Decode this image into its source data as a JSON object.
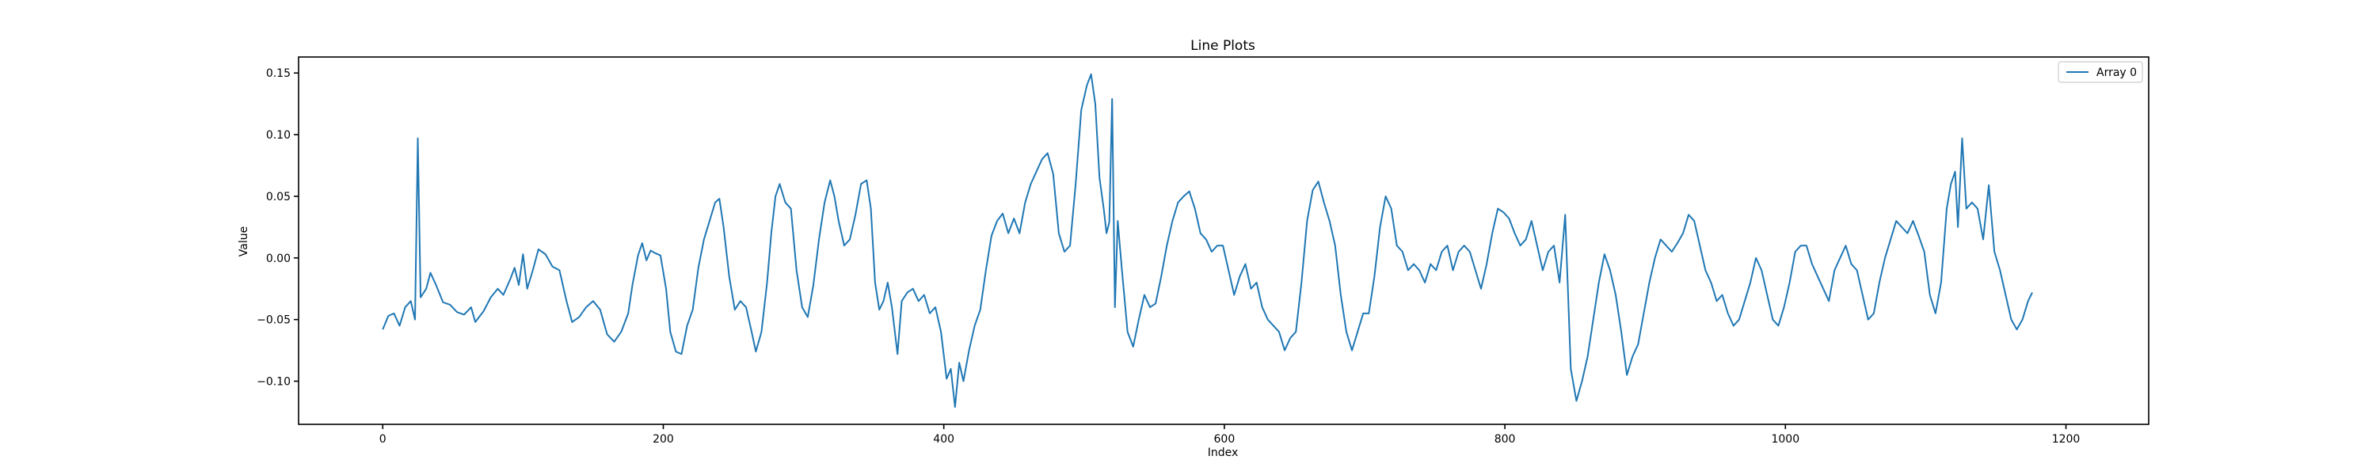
{
  "chart_data": {
    "type": "line",
    "title": "Line Plots",
    "xlabel": "Index",
    "ylabel": "Value",
    "xlim": [
      -60,
      1259
    ],
    "ylim": [
      -0.135,
      0.163
    ],
    "xticks": [
      0,
      200,
      400,
      600,
      800,
      1000,
      1200
    ],
    "xtick_labels": [
      "0",
      "200",
      "400",
      "600",
      "800",
      "1000",
      "1200"
    ],
    "yticks": [
      -0.1,
      -0.05,
      0.0,
      0.05,
      0.1,
      0.15
    ],
    "ytick_labels": [
      "−0.10",
      "−0.05",
      "0.00",
      "0.05",
      "0.10",
      "0.15"
    ],
    "grid": false,
    "legend_position": "top-right",
    "colors": {
      "series": "#1f77b4",
      "axes": "#000000",
      "background": "#ffffff"
    },
    "series": [
      {
        "name": "Array 0",
        "anchors": [
          [
            0,
            -0.058
          ],
          [
            4,
            -0.047
          ],
          [
            8,
            -0.045
          ],
          [
            12,
            -0.055
          ],
          [
            16,
            -0.04
          ],
          [
            20,
            -0.035
          ],
          [
            23,
            -0.05
          ],
          [
            25,
            0.097
          ],
          [
            27,
            -0.032
          ],
          [
            31,
            -0.025
          ],
          [
            34,
            -0.012
          ],
          [
            38,
            -0.022
          ],
          [
            43,
            -0.036
          ],
          [
            48,
            -0.038
          ],
          [
            53,
            -0.044
          ],
          [
            58,
            -0.046
          ],
          [
            63,
            -0.04
          ],
          [
            66,
            -0.052
          ],
          [
            72,
            -0.043
          ],
          [
            77,
            -0.032
          ],
          [
            82,
            -0.025
          ],
          [
            86,
            -0.03
          ],
          [
            91,
            -0.017
          ],
          [
            94,
            -0.008
          ],
          [
            97,
            -0.022
          ],
          [
            100,
            0.003
          ],
          [
            103,
            -0.025
          ],
          [
            107,
            -0.01
          ],
          [
            111,
            0.007
          ],
          [
            116,
            0.003
          ],
          [
            121,
            -0.007
          ],
          [
            126,
            -0.01
          ],
          [
            131,
            -0.035
          ],
          [
            135,
            -0.052
          ],
          [
            140,
            -0.048
          ],
          [
            145,
            -0.04
          ],
          [
            150,
            -0.035
          ],
          [
            155,
            -0.042
          ],
          [
            160,
            -0.062
          ],
          [
            165,
            -0.068
          ],
          [
            170,
            -0.06
          ],
          [
            175,
            -0.045
          ],
          [
            178,
            -0.022
          ],
          [
            182,
            0.002
          ],
          [
            185,
            0.012
          ],
          [
            188,
            -0.002
          ],
          [
            191,
            0.006
          ],
          [
            194,
            0.004
          ],
          [
            198,
            0.002
          ],
          [
            202,
            -0.025
          ],
          [
            205,
            -0.06
          ],
          [
            209,
            -0.076
          ],
          [
            213,
            -0.078
          ],
          [
            217,
            -0.055
          ],
          [
            221,
            -0.042
          ],
          [
            225,
            -0.008
          ],
          [
            229,
            0.015
          ],
          [
            233,
            0.03
          ],
          [
            237,
            0.045
          ],
          [
            240,
            0.048
          ],
          [
            243,
            0.025
          ],
          [
            247,
            -0.015
          ],
          [
            251,
            -0.042
          ],
          [
            255,
            -0.035
          ],
          [
            259,
            -0.04
          ],
          [
            263,
            -0.06
          ],
          [
            266,
            -0.076
          ],
          [
            270,
            -0.06
          ],
          [
            274,
            -0.02
          ],
          [
            277,
            0.02
          ],
          [
            280,
            0.05
          ],
          [
            283,
            0.06
          ],
          [
            287,
            0.045
          ],
          [
            291,
            0.04
          ],
          [
            295,
            -0.01
          ],
          [
            299,
            -0.04
          ],
          [
            303,
            -0.048
          ],
          [
            307,
            -0.022
          ],
          [
            311,
            0.015
          ],
          [
            315,
            0.045
          ],
          [
            319,
            0.063
          ],
          [
            322,
            0.05
          ],
          [
            325,
            0.03
          ],
          [
            329,
            0.01
          ],
          [
            333,
            0.015
          ],
          [
            337,
            0.035
          ],
          [
            341,
            0.06
          ],
          [
            345,
            0.063
          ],
          [
            348,
            0.04
          ],
          [
            351,
            -0.02
          ],
          [
            354,
            -0.042
          ],
          [
            357,
            -0.035
          ],
          [
            360,
            -0.02
          ],
          [
            363,
            -0.04
          ],
          [
            367,
            -0.078
          ],
          [
            370,
            -0.035
          ],
          [
            374,
            -0.028
          ],
          [
            378,
            -0.025
          ],
          [
            382,
            -0.035
          ],
          [
            386,
            -0.03
          ],
          [
            390,
            -0.045
          ],
          [
            394,
            -0.04
          ],
          [
            398,
            -0.06
          ],
          [
            402,
            -0.098
          ],
          [
            405,
            -0.09
          ],
          [
            408,
            -0.121
          ],
          [
            411,
            -0.085
          ],
          [
            414,
            -0.1
          ],
          [
            418,
            -0.075
          ],
          [
            422,
            -0.055
          ],
          [
            426,
            -0.042
          ],
          [
            430,
            -0.01
          ],
          [
            434,
            0.018
          ],
          [
            438,
            0.03
          ],
          [
            442,
            0.036
          ],
          [
            446,
            0.02
          ],
          [
            450,
            0.032
          ],
          [
            454,
            0.02
          ],
          [
            458,
            0.045
          ],
          [
            462,
            0.06
          ],
          [
            466,
            0.07
          ],
          [
            470,
            0.08
          ],
          [
            474,
            0.085
          ],
          [
            478,
            0.068
          ],
          [
            482,
            0.02
          ],
          [
            486,
            0.005
          ],
          [
            490,
            0.01
          ],
          [
            494,
            0.06
          ],
          [
            498,
            0.12
          ],
          [
            502,
            0.14
          ],
          [
            505,
            0.149
          ],
          [
            508,
            0.125
          ],
          [
            511,
            0.065
          ],
          [
            514,
            0.04
          ],
          [
            516,
            0.02
          ],
          [
            518,
            0.029
          ],
          [
            520,
            0.129
          ],
          [
            522,
            -0.04
          ],
          [
            524,
            0.03
          ],
          [
            527,
            -0.01
          ],
          [
            531,
            -0.06
          ],
          [
            535,
            -0.072
          ],
          [
            539,
            -0.05
          ],
          [
            543,
            -0.03
          ],
          [
            547,
            -0.04
          ],
          [
            551,
            -0.037
          ],
          [
            555,
            -0.015
          ],
          [
            559,
            0.01
          ],
          [
            563,
            0.03
          ],
          [
            567,
            0.045
          ],
          [
            571,
            0.05
          ],
          [
            575,
            0.054
          ],
          [
            579,
            0.04
          ],
          [
            583,
            0.02
          ],
          [
            587,
            0.015
          ],
          [
            591,
            0.005
          ],
          [
            595,
            0.01
          ],
          [
            599,
            0.01
          ],
          [
            603,
            -0.01
          ],
          [
            607,
            -0.03
          ],
          [
            611,
            -0.015
          ],
          [
            615,
            -0.005
          ],
          [
            619,
            -0.025
          ],
          [
            623,
            -0.02
          ],
          [
            627,
            -0.04
          ],
          [
            631,
            -0.05
          ],
          [
            635,
            -0.055
          ],
          [
            639,
            -0.06
          ],
          [
            643,
            -0.075
          ],
          [
            647,
            -0.065
          ],
          [
            651,
            -0.06
          ],
          [
            655,
            -0.02
          ],
          [
            659,
            0.03
          ],
          [
            663,
            0.055
          ],
          [
            667,
            0.062
          ],
          [
            671,
            0.045
          ],
          [
            675,
            0.03
          ],
          [
            679,
            0.01
          ],
          [
            683,
            -0.03
          ],
          [
            687,
            -0.06
          ],
          [
            691,
            -0.075
          ],
          [
            695,
            -0.06
          ],
          [
            699,
            -0.045
          ],
          [
            703,
            -0.045
          ],
          [
            707,
            -0.015
          ],
          [
            711,
            0.025
          ],
          [
            715,
            0.05
          ],
          [
            719,
            0.04
          ],
          [
            723,
            0.01
          ],
          [
            727,
            0.005
          ],
          [
            731,
            -0.01
          ],
          [
            735,
            -0.005
          ],
          [
            739,
            -0.01
          ],
          [
            743,
            -0.02
          ],
          [
            747,
            -0.005
          ],
          [
            751,
            -0.01
          ],
          [
            755,
            0.005
          ],
          [
            759,
            0.01
          ],
          [
            763,
            -0.01
          ],
          [
            767,
            0.005
          ],
          [
            771,
            0.01
          ],
          [
            775,
            0.005
          ],
          [
            779,
            -0.01
          ],
          [
            783,
            -0.025
          ],
          [
            787,
            -0.005
          ],
          [
            791,
            0.02
          ],
          [
            795,
            0.04
          ],
          [
            799,
            0.037
          ],
          [
            803,
            0.032
          ],
          [
            807,
            0.02
          ],
          [
            811,
            0.01
          ],
          [
            815,
            0.015
          ],
          [
            819,
            0.03
          ],
          [
            823,
            0.01
          ],
          [
            827,
            -0.01
          ],
          [
            831,
            0.005
          ],
          [
            835,
            0.01
          ],
          [
            839,
            -0.02
          ],
          [
            843,
            0.035
          ],
          [
            847,
            -0.09
          ],
          [
            851,
            -0.116
          ],
          [
            855,
            -0.1
          ],
          [
            859,
            -0.08
          ],
          [
            863,
            -0.05
          ],
          [
            867,
            -0.02
          ],
          [
            871,
            0.003
          ],
          [
            875,
            -0.01
          ],
          [
            879,
            -0.03
          ],
          [
            883,
            -0.06
          ],
          [
            887,
            -0.095
          ],
          [
            891,
            -0.08
          ],
          [
            895,
            -0.07
          ],
          [
            899,
            -0.045
          ],
          [
            903,
            -0.02
          ],
          [
            907,
            0.0
          ],
          [
            911,
            0.015
          ],
          [
            915,
            0.01
          ],
          [
            919,
            0.005
          ],
          [
            923,
            0.012
          ],
          [
            927,
            0.02
          ],
          [
            931,
            0.035
          ],
          [
            935,
            0.03
          ],
          [
            939,
            0.01
          ],
          [
            943,
            -0.01
          ],
          [
            947,
            -0.02
          ],
          [
            951,
            -0.035
          ],
          [
            955,
            -0.03
          ],
          [
            959,
            -0.045
          ],
          [
            963,
            -0.055
          ],
          [
            967,
            -0.05
          ],
          [
            971,
            -0.035
          ],
          [
            975,
            -0.02
          ],
          [
            979,
            0.0
          ],
          [
            983,
            -0.01
          ],
          [
            987,
            -0.03
          ],
          [
            991,
            -0.05
          ],
          [
            995,
            -0.055
          ],
          [
            999,
            -0.04
          ],
          [
            1003,
            -0.02
          ],
          [
            1007,
            0.005
          ],
          [
            1011,
            0.01
          ],
          [
            1015,
            0.01
          ],
          [
            1019,
            -0.005
          ],
          [
            1023,
            -0.015
          ],
          [
            1027,
            -0.025
          ],
          [
            1031,
            -0.035
          ],
          [
            1035,
            -0.01
          ],
          [
            1039,
            0.0
          ],
          [
            1043,
            0.01
          ],
          [
            1047,
            -0.005
          ],
          [
            1051,
            -0.01
          ],
          [
            1055,
            -0.03
          ],
          [
            1059,
            -0.05
          ],
          [
            1063,
            -0.045
          ],
          [
            1067,
            -0.02
          ],
          [
            1071,
            0.0
          ],
          [
            1075,
            0.015
          ],
          [
            1079,
            0.03
          ],
          [
            1083,
            0.025
          ],
          [
            1087,
            0.02
          ],
          [
            1091,
            0.03
          ],
          [
            1095,
            0.018
          ],
          [
            1099,
            0.005
          ],
          [
            1103,
            -0.03
          ],
          [
            1107,
            -0.045
          ],
          [
            1111,
            -0.02
          ],
          [
            1115,
            0.04
          ],
          [
            1118,
            0.06
          ],
          [
            1121,
            0.07
          ],
          [
            1123,
            0.025
          ],
          [
            1126,
            0.097
          ],
          [
            1129,
            0.04
          ],
          [
            1133,
            0.045
          ],
          [
            1137,
            0.04
          ],
          [
            1141,
            0.015
          ],
          [
            1145,
            0.059
          ],
          [
            1149,
            0.005
          ],
          [
            1153,
            -0.01
          ],
          [
            1157,
            -0.03
          ],
          [
            1161,
            -0.05
          ],
          [
            1165,
            -0.058
          ],
          [
            1169,
            -0.05
          ],
          [
            1173,
            -0.035
          ],
          [
            1176,
            -0.028
          ]
        ],
        "notes": "x values 0..1199 sampled at anchor points; line drawn through anchors"
      }
    ]
  }
}
